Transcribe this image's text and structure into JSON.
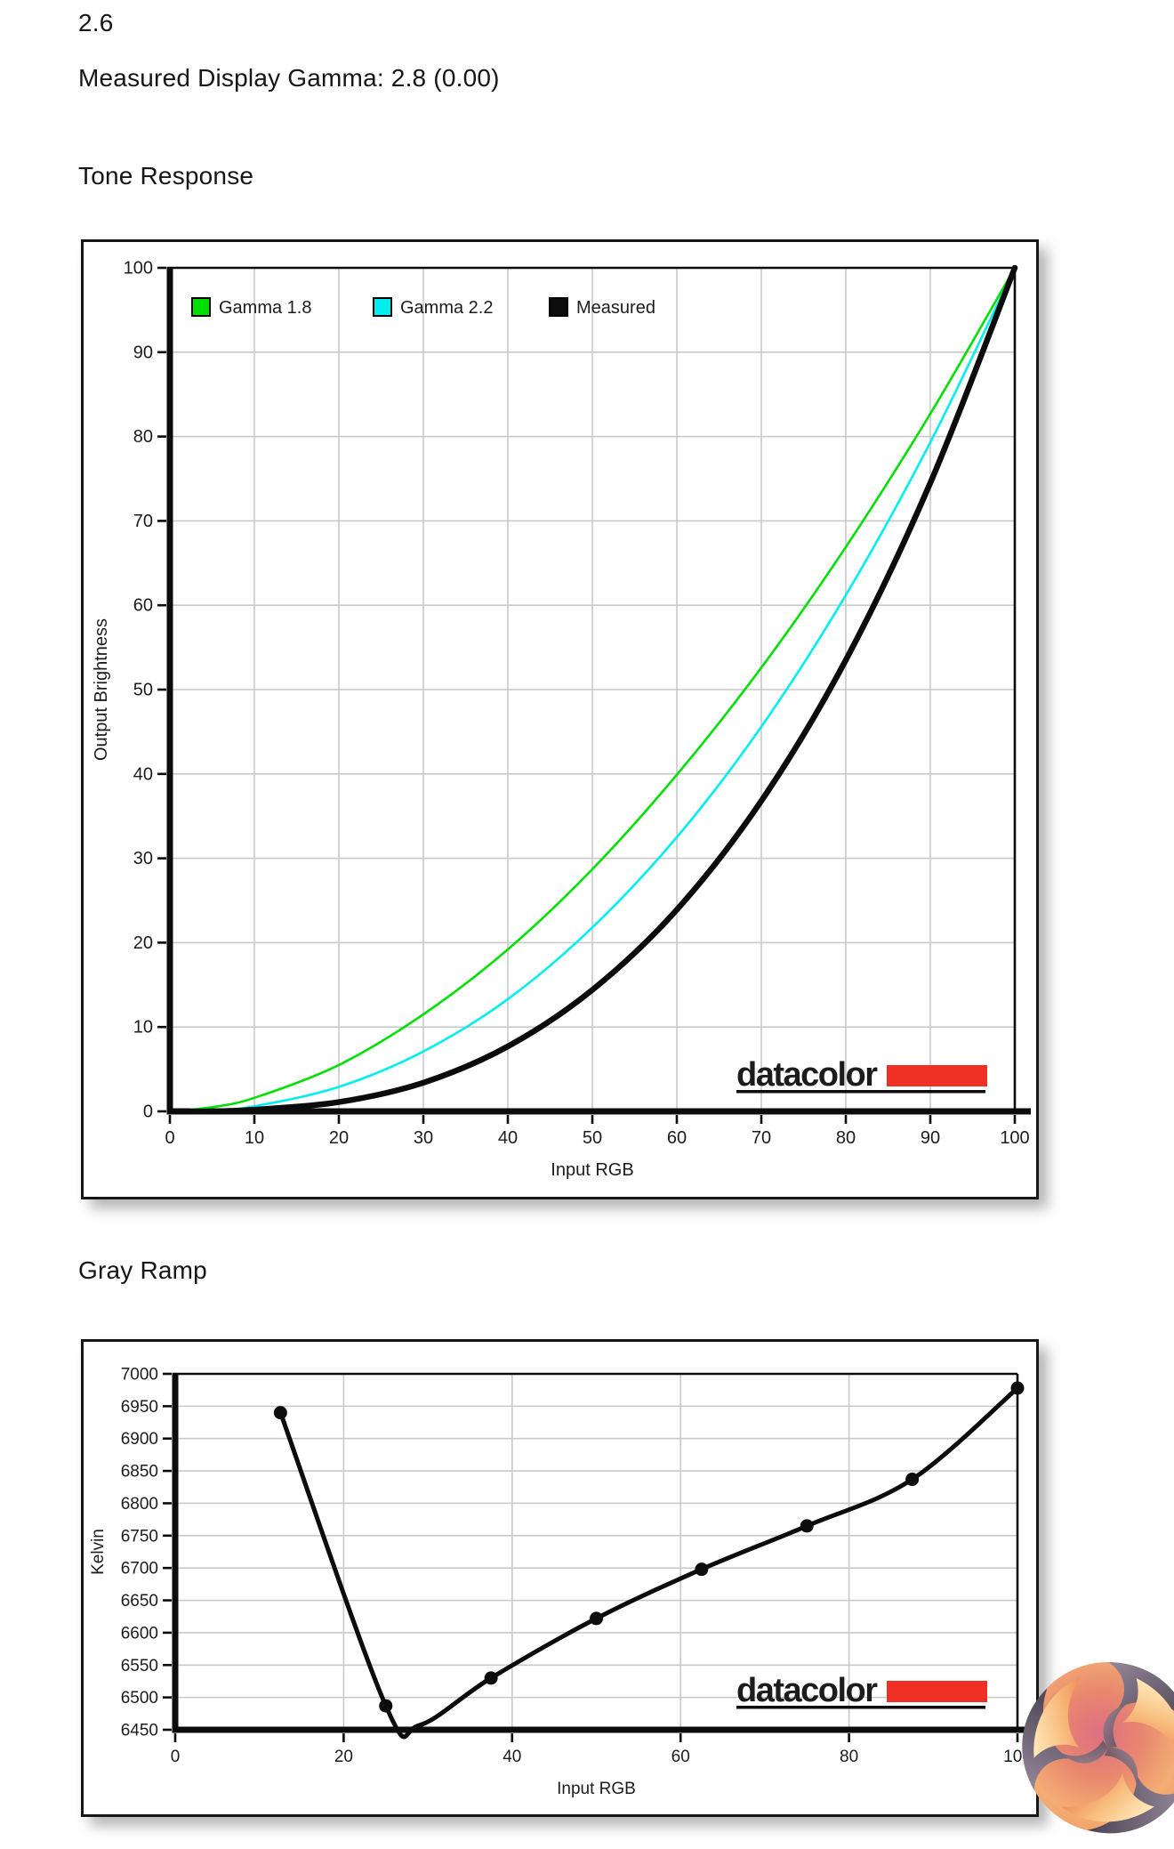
{
  "page": {
    "top_value": "2.6",
    "gamma_line": "Measured Display Gamma: 2.8 (0.00)",
    "tone_response_heading": "Tone Response",
    "gray_ramp_heading": "Gray Ramp"
  },
  "colors": {
    "gamma18": "#00e000",
    "gamma22": "#00eeee",
    "measured": "#0c0c0c",
    "grid": "#c9c9c9",
    "axis": "#0c0c0c",
    "tick_label": "#222222",
    "datacolor_red": "#ee3124",
    "datacolor_text": "#0c0c0c"
  },
  "datacolor_logo": {
    "text": "datacolor"
  },
  "kitguru_logo": {
    "name": "kitguru swirl logo"
  },
  "chart_data": [
    {
      "type": "line",
      "title": "Tone Response",
      "xlabel": "Input RGB",
      "ylabel": "Output Brightness",
      "xlim": [
        0,
        100
      ],
      "ylim": [
        0,
        100
      ],
      "x_ticks": [
        0,
        10,
        20,
        30,
        40,
        50,
        60,
        70,
        80,
        90,
        100
      ],
      "y_ticks": [
        0,
        10,
        20,
        30,
        40,
        50,
        60,
        70,
        80,
        90,
        100
      ],
      "grid": true,
      "legend_position": "top-inside",
      "x": [
        0,
        5,
        10,
        20,
        30,
        40,
        50,
        60,
        70,
        80,
        90,
        100
      ],
      "series": [
        {
          "name": "Gamma 1.8",
          "gamma": 1.8,
          "color_key": "gamma18",
          "line_width": 2.6,
          "values": [
            0,
            0.5,
            1.6,
            5.5,
            11.5,
            19.2,
            28.7,
            39.9,
            52.6,
            66.9,
            82.7,
            100
          ]
        },
        {
          "name": "Gamma 2.2",
          "gamma": 2.2,
          "color_key": "gamma22",
          "line_width": 2.6,
          "values": [
            0,
            0.1,
            0.6,
            2.9,
            7.1,
            13.3,
            21.8,
            32.5,
            45.6,
            61.2,
            79.3,
            100
          ]
        },
        {
          "name": "Measured",
          "gamma": 2.8,
          "color_key": "measured",
          "line_width": 6.5,
          "values": [
            0,
            0.0,
            0.2,
            1.1,
            3.4,
            7.7,
            14.4,
            23.9,
            36.8,
            53.5,
            74.5,
            100
          ]
        }
      ]
    },
    {
      "type": "line",
      "title": "Gray Ramp",
      "xlabel": "Input RGB",
      "ylabel": "Kelvin",
      "xlim": [
        0,
        100
      ],
      "ylim": [
        6450,
        7000
      ],
      "x_ticks": [
        0,
        20,
        40,
        60,
        80,
        100
      ],
      "y_ticks": [
        6450,
        6500,
        6550,
        6600,
        6650,
        6700,
        6750,
        6800,
        6850,
        6900,
        6950,
        7000
      ],
      "grid": true,
      "marker": "circle",
      "marker_radius": 7.5,
      "line_width": 5,
      "points": [
        {
          "x": 12.5,
          "y": 6940
        },
        {
          "x": 25,
          "y": 6487
        },
        {
          "x": 37.5,
          "y": 6530
        },
        {
          "x": 50,
          "y": 6622
        },
        {
          "x": 62.5,
          "y": 6698
        },
        {
          "x": 75,
          "y": 6765
        },
        {
          "x": 87.5,
          "y": 6837
        },
        {
          "x": 100,
          "y": 6978
        }
      ],
      "curve_dip_point": {
        "x": 29,
        "y": 6457
      }
    }
  ]
}
